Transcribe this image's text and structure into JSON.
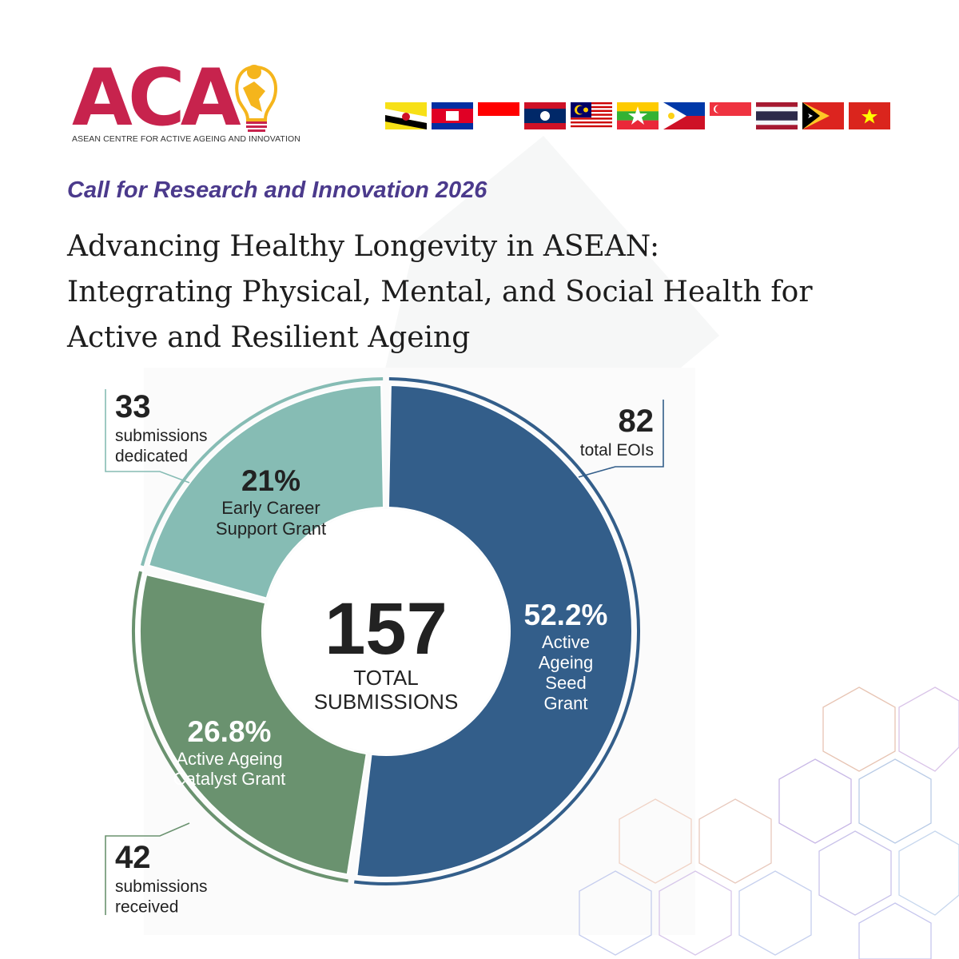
{
  "brand": {
    "logo_text": "ACA",
    "logo_subtitle": "ASEAN CENTRE FOR ACTIVE AGEING AND INNOVATION",
    "primary_color": "#c7234d",
    "secondary_color": "#4b3a8c",
    "accent_color": "#f5b51c"
  },
  "flags": [
    "Brunei",
    "Cambodia",
    "Indonesia",
    "Laos",
    "Malaysia",
    "Myanmar",
    "Philippines",
    "Singapore",
    "Thailand",
    "Timor-Leste",
    "Vietnam"
  ],
  "header": {
    "subtitle": "Call for Research and Innovation 2026",
    "headline_lines": [
      "Advancing Healthy Longevity in ASEAN:",
      "Integrating Physical, Mental, and Social Health for",
      "Active and Resilient Ageing"
    ]
  },
  "chart_data": {
    "type": "pie",
    "variant": "donut",
    "center_value": "157",
    "center_label_lines": [
      "TOTAL",
      "SUBMISSIONS"
    ],
    "total": 157,
    "slices": [
      {
        "name_lines": [
          "Active",
          "Ageing",
          "Seed",
          "Grant"
        ],
        "percent": 52.2,
        "percent_label": "52.2%",
        "count": 82,
        "count_label": "82",
        "callout_lines": [
          "total EOIs"
        ],
        "color": "#335e8a"
      },
      {
        "name_lines": [
          "Active Ageing",
          "Catalyst Grant"
        ],
        "percent": 26.8,
        "percent_label": "26.8%",
        "count": 42,
        "count_label": "42",
        "callout_lines": [
          "submissions",
          "received"
        ],
        "color": "#6a926f"
      },
      {
        "name_lines": [
          "Early Career",
          "Support Grant"
        ],
        "percent": 21,
        "percent_label": "21%",
        "count": 33,
        "count_label": "33",
        "callout_lines": [
          "submissions",
          "dedicated"
        ],
        "color": "#86bcb4"
      }
    ]
  }
}
